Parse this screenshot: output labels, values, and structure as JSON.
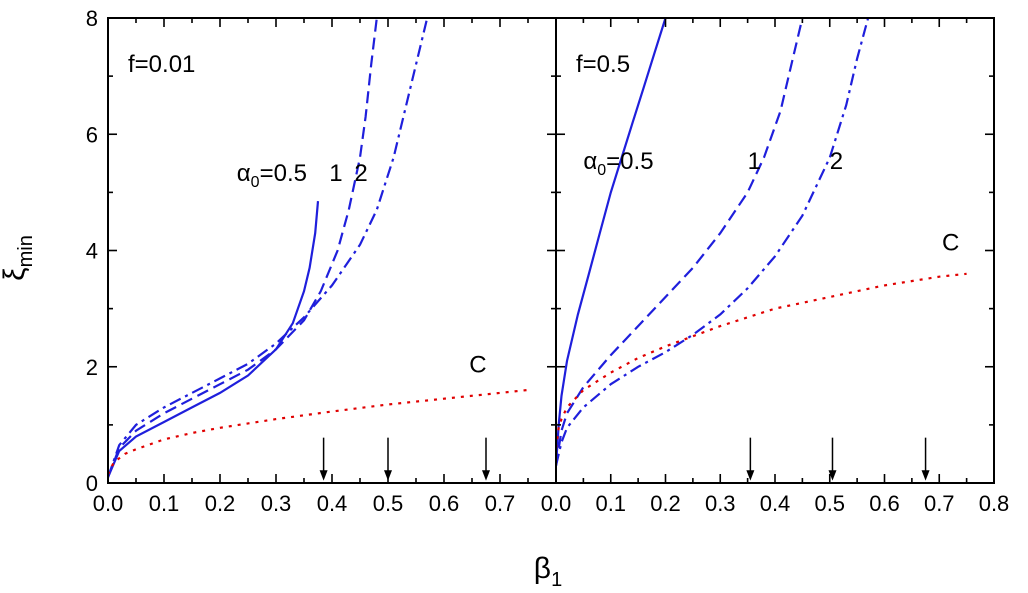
{
  "figure": {
    "ylabel": "ξ",
    "ylabel_sub": "min",
    "xlabel": "β",
    "xlabel_sub": "1"
  },
  "colors": {
    "curves": "#1f1fdc",
    "critical": "#e00000",
    "axes": "#000000"
  },
  "chart_data": [
    {
      "type": "line",
      "title": "f=0.01",
      "xlim": [
        0.0,
        0.8
      ],
      "ylim": [
        0,
        8
      ],
      "xticks": [
        "0.0",
        "0.1",
        "0.2",
        "0.3",
        "0.4",
        "0.5",
        "0.6",
        "0.7"
      ],
      "yticks": [
        "0",
        "2",
        "4",
        "6",
        "8"
      ],
      "series": [
        {
          "name": "α0=0.5",
          "style": "solid",
          "color": "#1f1fdc",
          "x": [
            0.0,
            0.02,
            0.05,
            0.1,
            0.15,
            0.2,
            0.25,
            0.3,
            0.33,
            0.35,
            0.36,
            0.37,
            0.375
          ],
          "y": [
            0.1,
            0.55,
            0.8,
            1.05,
            1.3,
            1.55,
            1.85,
            2.3,
            2.75,
            3.3,
            3.7,
            4.3,
            4.85
          ]
        },
        {
          "name": "1",
          "style": "dash",
          "color": "#1f1fdc",
          "x": [
            0.0,
            0.02,
            0.05,
            0.1,
            0.15,
            0.2,
            0.25,
            0.3,
            0.35,
            0.38,
            0.41,
            0.43,
            0.45,
            0.46,
            0.47,
            0.48
          ],
          "y": [
            0.1,
            0.6,
            0.9,
            1.2,
            1.45,
            1.7,
            1.95,
            2.3,
            2.8,
            3.3,
            4.0,
            4.7,
            5.6,
            6.3,
            7.2,
            8.0
          ]
        },
        {
          "name": "2",
          "style": "dashdot",
          "color": "#1f1fdc",
          "x": [
            0.0,
            0.02,
            0.05,
            0.1,
            0.15,
            0.2,
            0.25,
            0.3,
            0.35,
            0.4,
            0.45,
            0.48,
            0.51,
            0.53,
            0.55,
            0.57
          ],
          "y": [
            0.1,
            0.65,
            1.0,
            1.3,
            1.55,
            1.8,
            2.05,
            2.4,
            2.85,
            3.4,
            4.1,
            4.7,
            5.6,
            6.4,
            7.2,
            8.0
          ]
        },
        {
          "name": "C",
          "style": "dot",
          "color": "#e00000",
          "x": [
            0.0,
            0.01,
            0.03,
            0.05,
            0.1,
            0.15,
            0.2,
            0.3,
            0.4,
            0.5,
            0.6,
            0.7,
            0.75
          ],
          "y": [
            0.15,
            0.35,
            0.5,
            0.58,
            0.75,
            0.86,
            0.95,
            1.1,
            1.23,
            1.35,
            1.45,
            1.55,
            1.6
          ]
        }
      ],
      "labels": [
        {
          "text": "α",
          "sub": "0",
          "rest": "=0.5",
          "x": 0.23,
          "y": 5.2
        },
        {
          "text": "1",
          "x": 0.395,
          "y": 5.2
        },
        {
          "text": "2",
          "x": 0.44,
          "y": 5.2
        },
        {
          "text": "C",
          "x": 0.645,
          "y": 1.9
        }
      ],
      "arrows": [
        0.385,
        0.5,
        0.675
      ]
    },
    {
      "type": "line",
      "title": "f=0.5",
      "xlim": [
        0.0,
        0.8
      ],
      "ylim": [
        0,
        8
      ],
      "xticks": [
        "0.0",
        "0.1",
        "0.2",
        "0.3",
        "0.4",
        "0.5",
        "0.6",
        "0.7",
        "0.8"
      ],
      "yticks": [],
      "series": [
        {
          "name": "α0=0.5",
          "style": "solid",
          "color": "#1f1fdc",
          "x": [
            0.0,
            0.005,
            0.01,
            0.02,
            0.04,
            0.06,
            0.08,
            0.1,
            0.12,
            0.14,
            0.16,
            0.18,
            0.2
          ],
          "y": [
            0.3,
            1.0,
            1.5,
            2.1,
            2.9,
            3.6,
            4.3,
            5.0,
            5.6,
            6.2,
            6.8,
            7.4,
            8.0
          ]
        },
        {
          "name": "1",
          "style": "dash",
          "color": "#1f1fdc",
          "x": [
            0.0,
            0.01,
            0.02,
            0.05,
            0.1,
            0.15,
            0.2,
            0.25,
            0.3,
            0.35,
            0.38,
            0.41,
            0.43,
            0.45
          ],
          "y": [
            0.3,
            0.9,
            1.2,
            1.65,
            2.2,
            2.7,
            3.2,
            3.7,
            4.3,
            5.0,
            5.6,
            6.4,
            7.2,
            8.0
          ]
        },
        {
          "name": "2",
          "style": "dashdot",
          "color": "#1f1fdc",
          "x": [
            0.0,
            0.01,
            0.02,
            0.05,
            0.1,
            0.15,
            0.2,
            0.25,
            0.3,
            0.35,
            0.4,
            0.45,
            0.5,
            0.53,
            0.55,
            0.57
          ],
          "y": [
            0.3,
            0.7,
            0.95,
            1.3,
            1.7,
            2.0,
            2.25,
            2.55,
            2.9,
            3.35,
            3.9,
            4.6,
            5.6,
            6.5,
            7.3,
            8.0
          ]
        },
        {
          "name": "C",
          "style": "dot",
          "color": "#e00000",
          "x": [
            0.0,
            0.005,
            0.01,
            0.02,
            0.05,
            0.1,
            0.15,
            0.2,
            0.3,
            0.4,
            0.5,
            0.6,
            0.7,
            0.75
          ],
          "y": [
            0.6,
            0.95,
            1.1,
            1.3,
            1.6,
            1.9,
            2.15,
            2.35,
            2.7,
            3.0,
            3.2,
            3.4,
            3.55,
            3.6
          ]
        }
      ],
      "labels": [
        {
          "text": "α",
          "sub": "0",
          "rest": "=0.5",
          "x": 0.05,
          "y": 5.4
        },
        {
          "text": "1",
          "x": 0.35,
          "y": 5.4
        },
        {
          "text": "2",
          "x": 0.5,
          "y": 5.4
        },
        {
          "text": "C",
          "x": 0.705,
          "y": 4.0
        }
      ],
      "arrows": [
        0.355,
        0.505,
        0.675
      ]
    }
  ]
}
